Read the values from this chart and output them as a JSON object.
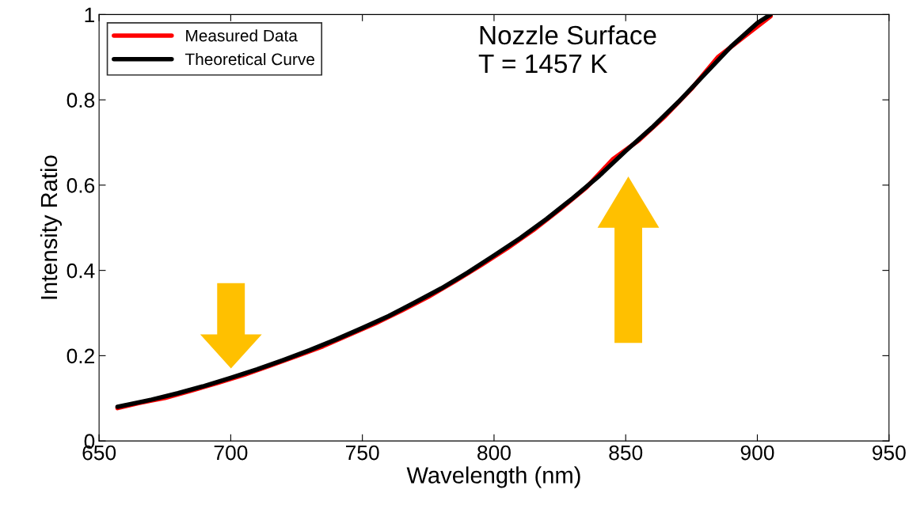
{
  "chart_data": {
    "type": "line",
    "xlabel": "Wavelength (nm)",
    "ylabel": "Intensity Ratio",
    "annotations": [
      "Nozzle Surface\nT = 1457 K"
    ],
    "series": [
      {
        "name": "Measured Data",
        "color": "#ff0000",
        "x": [
          657,
          665,
          675,
          685,
          695,
          705,
          715,
          725,
          735,
          745,
          755,
          765,
          775,
          785,
          795,
          805,
          815,
          825,
          835,
          845,
          855,
          865,
          875,
          885,
          895,
          905
        ],
        "values": [
          0.077,
          0.089,
          0.101,
          0.118,
          0.136,
          0.155,
          0.177,
          0.199,
          0.222,
          0.249,
          0.276,
          0.306,
          0.338,
          0.374,
          0.412,
          0.452,
          0.495,
          0.543,
          0.594,
          0.66,
          0.705,
          0.762,
          0.826,
          0.9,
          0.948,
          0.996
        ]
      },
      {
        "name": "Theoretical Curve",
        "color": "#000000",
        "x": [
          657,
          670,
          680,
          690,
          700,
          710,
          720,
          730,
          740,
          750,
          760,
          770,
          780,
          790,
          800,
          810,
          820,
          830,
          840,
          850,
          860,
          870,
          880,
          890,
          900,
          905
        ],
        "values": [
          0.08,
          0.097,
          0.112,
          0.129,
          0.148,
          0.168,
          0.19,
          0.213,
          0.238,
          0.265,
          0.293,
          0.325,
          0.358,
          0.395,
          0.435,
          0.476,
          0.521,
          0.57,
          0.622,
          0.68,
          0.735,
          0.795,
          0.86,
          0.925,
          0.98,
          1.0
        ]
      }
    ],
    "xlim": [
      650,
      950
    ],
    "xticks": [
      650,
      700,
      750,
      800,
      850,
      900,
      950
    ],
    "ylim": [
      0,
      1
    ],
    "yticks": [
      0,
      0.2,
      0.4,
      0.6,
      0.8,
      1
    ],
    "grid": false,
    "legend": "top left",
    "marker": "none",
    "line_style": "solid"
  }
}
